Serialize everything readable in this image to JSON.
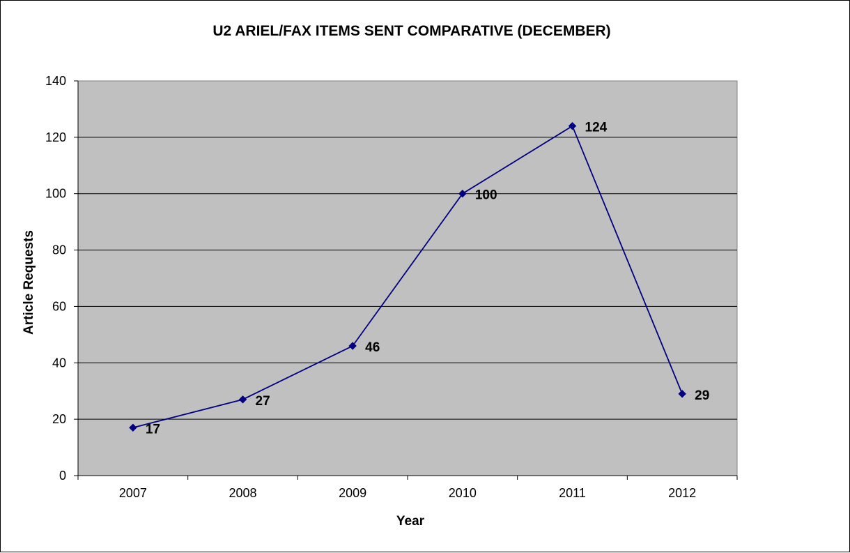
{
  "chart_data": {
    "type": "line",
    "title": "U2 ARIEL/FAX ITEMS SENT COMPARATIVE (DECEMBER)",
    "xlabel": "Year",
    "ylabel": "Article Requests",
    "categories": [
      "2007",
      "2008",
      "2009",
      "2010",
      "2011",
      "2012"
    ],
    "series": [
      {
        "values": [
          17,
          27,
          46,
          100,
          124,
          29
        ],
        "color": "#000080",
        "marker": "diamond"
      }
    ],
    "data_labels": [
      "17",
      "27",
      "46",
      "100",
      "124",
      "29"
    ],
    "ylim": [
      0,
      140
    ],
    "yticks": [
      "0",
      "20",
      "40",
      "60",
      "80",
      "100",
      "120",
      "140"
    ],
    "grid": true,
    "plot_background": "#c0c0c0",
    "legend": "none"
  }
}
